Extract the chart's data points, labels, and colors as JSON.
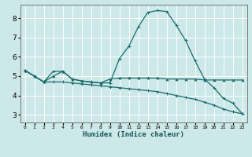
{
  "title": "",
  "xlabel": "Humidex (Indice chaleur)",
  "background_color": "#cce8e8",
  "grid_color": "#ffffff",
  "line_color": "#1a6b6b",
  "x_ticks": [
    0,
    1,
    2,
    3,
    4,
    5,
    6,
    7,
    8,
    9,
    10,
    11,
    12,
    13,
    14,
    15,
    16,
    17,
    18,
    19,
    20,
    21,
    22,
    23
  ],
  "y_ticks": [
    3,
    4,
    5,
    6,
    7,
    8
  ],
  "xlim": [
    -0.5,
    23.5
  ],
  "ylim": [
    2.6,
    8.7
  ],
  "line1_y": [
    5.3,
    5.0,
    4.7,
    5.25,
    5.25,
    4.85,
    4.75,
    4.7,
    4.65,
    4.65,
    5.9,
    6.55,
    7.55,
    8.3,
    8.4,
    8.35,
    7.65,
    6.85,
    5.8,
    4.85,
    4.4,
    3.85,
    3.6,
    3.05
  ],
  "line2_y": [
    5.3,
    5.0,
    4.7,
    5.0,
    5.25,
    4.85,
    4.75,
    4.7,
    4.65,
    4.85,
    4.9,
    4.9,
    4.9,
    4.9,
    4.9,
    4.85,
    4.85,
    4.85,
    4.85,
    4.8,
    4.8,
    4.8,
    4.8,
    4.8
  ],
  "line3_y": [
    5.3,
    5.0,
    4.7,
    4.7,
    4.7,
    4.65,
    4.6,
    4.55,
    4.5,
    4.45,
    4.4,
    4.35,
    4.3,
    4.25,
    4.2,
    4.1,
    4.0,
    3.9,
    3.8,
    3.65,
    3.5,
    3.3,
    3.15,
    3.05
  ]
}
